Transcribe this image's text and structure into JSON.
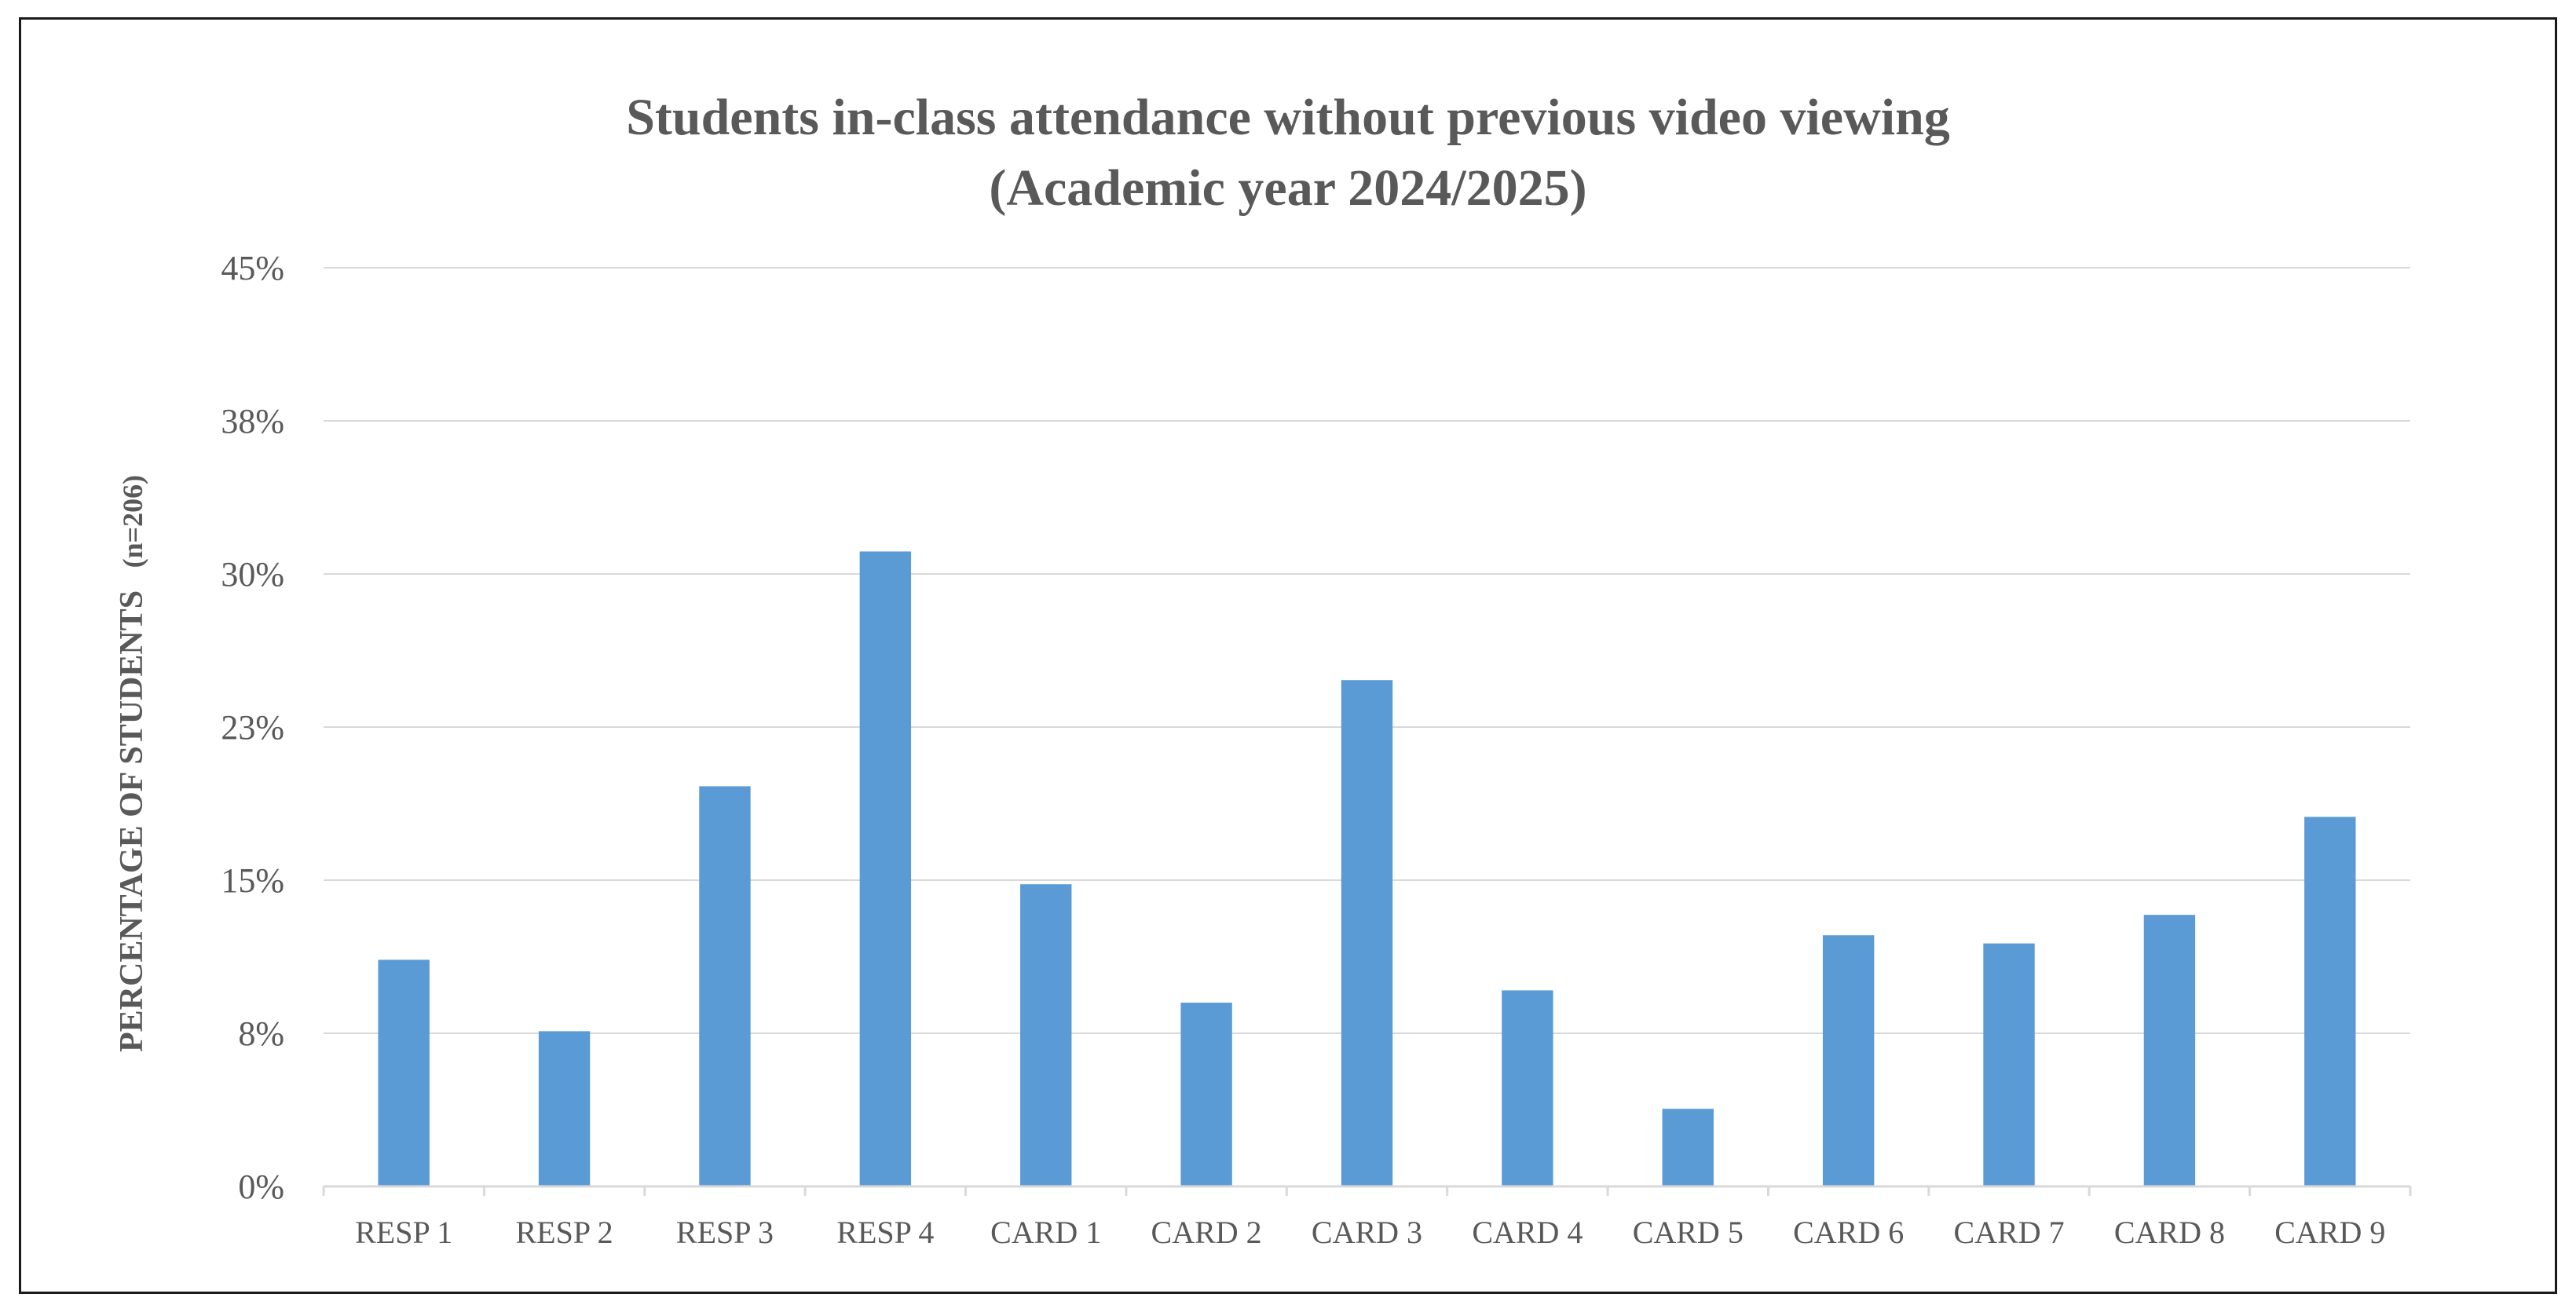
{
  "chart_data": {
    "type": "bar",
    "title": "Students in-class attendance without previous video viewing",
    "subtitle": "(Academic year 2024/2025)",
    "xlabel": "",
    "ylabel": "PERCENTAGE OF STUDENTS",
    "ylabel_note": "(n=206)",
    "categories": [
      "RESP 1",
      "RESP 2",
      "RESP 3",
      "RESP 4",
      "CARD 1",
      "CARD 2",
      "CARD 3",
      "CARD 4",
      "CARD 5",
      "CARD 6",
      "CARD 7",
      "CARD 8",
      "CARD 9"
    ],
    "values": [
      11.1,
      7.6,
      19.6,
      31.1,
      14.8,
      9.0,
      24.8,
      9.6,
      3.8,
      12.3,
      11.9,
      13.3,
      18.1
    ],
    "ylim": [
      0,
      45
    ],
    "yticks": [
      0,
      7.5,
      15,
      22.5,
      30,
      37.5,
      45
    ],
    "ytick_labels": [
      "0%",
      "8%",
      "15%",
      "23%",
      "30%",
      "38%",
      "45%"
    ],
    "grid": true,
    "legend": "none",
    "bar_color": "#5b9bd5"
  }
}
